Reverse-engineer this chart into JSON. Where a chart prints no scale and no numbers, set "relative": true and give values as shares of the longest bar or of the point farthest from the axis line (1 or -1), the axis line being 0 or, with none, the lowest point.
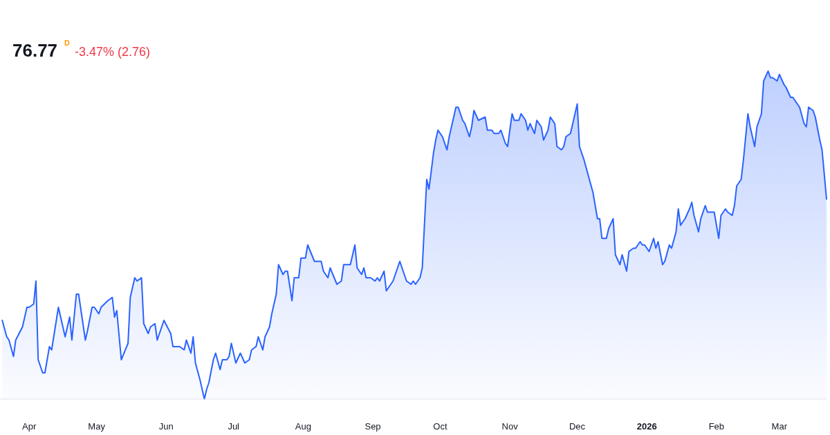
{
  "chart_data": {
    "type": "area",
    "title": "76.77",
    "subtitle": "-3.47% (2.76)",
    "annotations": [
      "D"
    ],
    "relative": true,
    "color": "#2962ff",
    "xlim": [
      "2025-03-19",
      "2026-03-22"
    ],
    "xticks": [
      {
        "value": "2025-04-01",
        "label": "Apr"
      },
      {
        "value": "2025-05-01",
        "label": "May"
      },
      {
        "value": "2025-06-01",
        "label": "Jun"
      },
      {
        "value": "2025-07-01",
        "label": "Jul"
      },
      {
        "value": "2025-08-01",
        "label": "Aug"
      },
      {
        "value": "2025-09-01",
        "label": "Sep"
      },
      {
        "value": "2025-10-01",
        "label": "Oct"
      },
      {
        "value": "2025-11-01",
        "label": "Nov"
      },
      {
        "value": "2025-12-01",
        "label": "Dec"
      },
      {
        "value": "2026-01-01",
        "label": "2026"
      },
      {
        "value": "2026-02-01",
        "label": "Feb"
      },
      {
        "value": "2026-03-01",
        "label": "Mar"
      }
    ],
    "x": [
      "2025-03-20",
      "2025-03-22",
      "2025-03-23",
      "2025-03-25",
      "2025-03-26",
      "2025-03-29",
      "2025-03-31",
      "2025-04-01",
      "2025-04-03",
      "2025-04-04",
      "2025-04-05",
      "2025-04-07",
      "2025-04-08",
      "2025-04-10",
      "2025-04-11",
      "2025-04-14",
      "2025-04-15",
      "2025-04-17",
      "2025-04-19",
      "2025-04-20",
      "2025-04-22",
      "2025-04-23",
      "2025-04-26",
      "2025-04-27",
      "2025-04-29",
      "2025-04-30",
      "2025-05-02",
      "2025-05-03",
      "2025-05-06",
      "2025-05-08",
      "2025-05-09",
      "2025-05-10",
      "2025-05-12",
      "2025-05-15",
      "2025-05-16",
      "2025-05-18",
      "2025-05-19",
      "2025-05-21",
      "2025-05-22",
      "2025-05-24",
      "2025-05-25",
      "2025-05-27",
      "2025-05-28",
      "2025-05-31",
      "2025-06-03",
      "2025-06-04",
      "2025-06-06",
      "2025-06-07",
      "2025-06-09",
      "2025-06-10",
      "2025-06-12",
      "2025-06-13",
      "2025-06-14",
      "2025-06-16",
      "2025-06-18",
      "2025-06-19",
      "2025-06-20",
      "2025-06-22",
      "2025-06-23",
      "2025-06-25",
      "2025-06-26",
      "2025-06-28",
      "2025-06-29",
      "2025-06-30",
      "2025-07-02",
      "2025-07-04",
      "2025-07-06",
      "2025-07-08",
      "2025-07-09",
      "2025-07-11",
      "2025-07-12",
      "2025-07-14",
      "2025-07-15",
      "2025-07-17",
      "2025-07-18",
      "2025-07-20",
      "2025-07-21",
      "2025-07-23",
      "2025-07-24",
      "2025-07-25",
      "2025-07-27",
      "2025-07-28",
      "2025-07-30",
      "2025-07-31",
      "2025-08-02",
      "2025-08-03",
      "2025-08-06",
      "2025-08-08",
      "2025-08-09",
      "2025-08-10",
      "2025-08-12",
      "2025-08-13",
      "2025-08-16",
      "2025-08-18",
      "2025-08-19",
      "2025-08-22",
      "2025-08-24",
      "2025-08-25",
      "2025-08-27",
      "2025-08-28",
      "2025-08-29",
      "2025-08-31",
      "2025-09-02",
      "2025-09-03",
      "2025-09-04",
      "2025-09-06",
      "2025-09-07",
      "2025-09-10",
      "2025-09-13",
      "2025-09-14",
      "2025-09-16",
      "2025-09-18",
      "2025-09-19",
      "2025-09-20",
      "2025-09-22",
      "2025-09-23",
      "2025-09-25",
      "2025-09-26",
      "2025-09-28",
      "2025-09-29",
      "2025-09-30",
      "2025-10-02",
      "2025-10-04",
      "2025-10-05",
      "2025-10-08",
      "2025-10-09",
      "2025-10-11",
      "2025-10-12",
      "2025-10-14",
      "2025-10-15",
      "2025-10-16",
      "2025-10-18",
      "2025-10-21",
      "2025-10-22",
      "2025-10-24",
      "2025-10-25",
      "2025-10-27",
      "2025-10-28",
      "2025-10-30",
      "2025-10-31",
      "2025-11-02",
      "2025-11-03",
      "2025-11-05",
      "2025-11-06",
      "2025-11-08",
      "2025-11-09",
      "2025-11-10",
      "2025-11-12",
      "2025-11-13",
      "2025-11-15",
      "2025-11-16",
      "2025-11-18",
      "2025-11-19",
      "2025-11-21",
      "2025-11-22",
      "2025-11-24",
      "2025-11-25",
      "2025-11-26",
      "2025-11-28",
      "2025-12-01",
      "2025-12-02",
      "2025-12-04",
      "2025-12-08",
      "2025-12-10",
      "2025-12-11",
      "2025-12-12",
      "2025-12-14",
      "2025-12-15",
      "2025-12-17",
      "2025-12-18",
      "2025-12-20",
      "2025-12-21",
      "2025-12-23",
      "2025-12-24",
      "2025-12-26",
      "2025-12-27",
      "2025-12-29",
      "2025-12-30",
      "2025-12-31",
      "2026-01-02",
      "2026-01-04",
      "2026-01-05",
      "2026-01-06",
      "2026-01-08",
      "2026-01-09",
      "2026-01-11",
      "2026-01-12",
      "2026-01-14",
      "2026-01-15",
      "2026-01-16",
      "2026-01-18",
      "2026-01-20",
      "2026-01-21",
      "2026-01-22",
      "2026-01-24",
      "2026-01-25",
      "2026-01-27",
      "2026-01-28",
      "2026-01-30",
      "2026-01-31",
      "2026-02-02",
      "2026-02-03",
      "2026-02-05",
      "2026-02-06",
      "2026-02-08",
      "2026-02-09",
      "2026-02-10",
      "2026-02-12",
      "2026-02-13",
      "2026-02-15",
      "2026-02-16",
      "2026-02-18",
      "2026-02-19",
      "2026-02-21",
      "2026-02-22",
      "2026-02-24",
      "2026-02-25",
      "2026-02-26",
      "2026-02-28",
      "2026-03-01",
      "2026-03-03",
      "2026-03-04",
      "2026-03-06",
      "2026-03-07",
      "2026-03-09",
      "2026-03-10",
      "2026-03-12",
      "2026-03-13",
      "2026-03-14",
      "2026-03-16",
      "2026-03-17",
      "2026-03-19",
      "2026-03-20",
      "2026-03-22"
    ],
    "values": [
      0.24,
      0.19,
      0.18,
      0.13,
      0.18,
      0.22,
      0.28,
      0.28,
      0.29,
      0.36,
      0.12,
      0.08,
      0.08,
      0.16,
      0.15,
      0.28,
      0.25,
      0.19,
      0.25,
      0.18,
      0.32,
      0.32,
      0.18,
      0.21,
      0.28,
      0.28,
      0.26,
      0.28,
      0.3,
      0.31,
      0.25,
      0.27,
      0.12,
      0.17,
      0.31,
      0.37,
      0.36,
      0.37,
      0.23,
      0.2,
      0.22,
      0.23,
      0.18,
      0.24,
      0.2,
      0.16,
      0.16,
      0.16,
      0.15,
      0.18,
      0.14,
      0.19,
      0.11,
      0.06,
      0,
      0.03,
      0.05,
      0.12,
      0.14,
      0.09,
      0.12,
      0.12,
      0.13,
      0.17,
      0.11,
      0.14,
      0.11,
      0.12,
      0.15,
      0.16,
      0.19,
      0.15,
      0.19,
      0.22,
      0.26,
      0.32,
      0.41,
      0.38,
      0.39,
      0.39,
      0.3,
      0.37,
      0.37,
      0.43,
      0.43,
      0.47,
      0.42,
      0.42,
      0.42,
      0.39,
      0.37,
      0.4,
      0.35,
      0.36,
      0.41,
      0.41,
      0.47,
      0.4,
      0.38,
      0.4,
      0.37,
      0.37,
      0.36,
      0.37,
      0.36,
      0.39,
      0.33,
      0.36,
      0.42,
      0.4,
      0.36,
      0.35,
      0.36,
      0.35,
      0.37,
      0.4,
      0.67,
      0.64,
      0.75,
      0.79,
      0.82,
      0.8,
      0.76,
      0.8,
      0.89,
      0.89,
      0.85,
      0.84,
      0.8,
      0.83,
      0.88,
      0.85,
      0.86,
      0.82,
      0.82,
      0.81,
      0.81,
      0.82,
      0.78,
      0.77,
      0.87,
      0.85,
      0.85,
      0.87,
      0.85,
      0.82,
      0.84,
      0.81,
      0.85,
      0.83,
      0.79,
      0.82,
      0.86,
      0.84,
      0.77,
      0.76,
      0.77,
      0.8,
      0.81,
      0.9,
      0.77,
      0.73,
      0.63,
      0.55,
      0.55,
      0.49,
      0.49,
      0.52,
      0.55,
      0.44,
      0.41,
      0.44,
      0.39,
      0.45,
      0.46,
      0.46,
      0.48,
      0.47,
      0.47,
      0.45,
      0.49,
      0.46,
      0.48,
      0.41,
      0.42,
      0.47,
      0.46,
      0.51,
      0.58,
      0.53,
      0.55,
      0.58,
      0.6,
      0.56,
      0.51,
      0.55,
      0.59,
      0.57,
      0.57,
      0.57,
      0.49,
      0.56,
      0.58,
      0.57,
      0.56,
      0.59,
      0.65,
      0.67,
      0.73,
      0.87,
      0.83,
      0.77,
      0.83,
      0.87,
      0.97,
      1.0,
      0.98,
      0.98,
      0.97,
      0.99,
      0.96,
      0.95,
      0.92,
      0.92,
      0.9,
      0.89,
      0.84,
      0.83,
      0.89,
      0.88,
      0.86,
      0.79,
      0.76,
      0.61
    ]
  }
}
